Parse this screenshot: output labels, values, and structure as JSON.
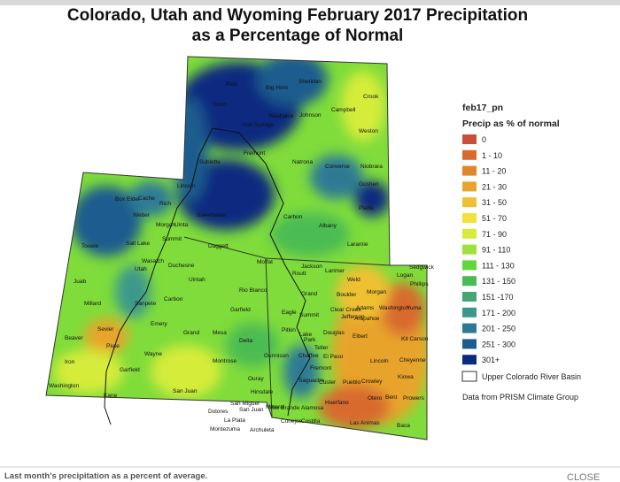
{
  "title": [
    "Colorado, Utah and Wyoming February 2017 Precipitation",
    "as a Percentage of Normal"
  ],
  "legend": {
    "layer": "feb17_pn",
    "heading": "Precip as % of normal",
    "items": [
      {
        "label": "0",
        "color": "#c8503a"
      },
      {
        "label": "1 - 10",
        "color": "#d86a2e"
      },
      {
        "label": "11 - 20",
        "color": "#e0862b"
      },
      {
        "label": "21 - 30",
        "color": "#e8a42c"
      },
      {
        "label": "31 - 50",
        "color": "#efc132"
      },
      {
        "label": "51 - 70",
        "color": "#f4e03a"
      },
      {
        "label": "71 - 90",
        "color": "#d6ec3b"
      },
      {
        "label": "91 - 110",
        "color": "#9ce23a"
      },
      {
        "label": "111 - 130",
        "color": "#62d63a"
      },
      {
        "label": "131 - 150",
        "color": "#4cbc52"
      },
      {
        "label": "151 -170",
        "color": "#44a676"
      },
      {
        "label": "171 - 200",
        "color": "#3d988c"
      },
      {
        "label": "201 - 250",
        "color": "#2d7a95"
      },
      {
        "label": "251 - 300",
        "color": "#1e5c8e"
      },
      {
        "label": "301+",
        "color": "#0c2a80"
      }
    ],
    "basin": "Upper Colorado River Basin"
  },
  "credit": "Data from PRISM Climate Group",
  "counties": [
    "Park",
    "Big Horn",
    "Sheridan",
    "Crook",
    "Teton",
    "Washakie",
    "Johnson",
    "Campbell",
    "Hot Springs",
    "Weston",
    "Fremont",
    "Natrona",
    "Converse",
    "Niobrara",
    "Sublette",
    "Lincoln",
    "Sweetwater",
    "Carbon",
    "Albany",
    "Platte",
    "Goshen",
    "Laramie",
    "Box Elder",
    "Cache",
    "Rich",
    "Weber",
    "Morgan",
    "Uinta",
    "Summit",
    "Daggett",
    "Salt Lake",
    "Tooele",
    "Wasatch",
    "Utah",
    "Duchesne",
    "Uintah",
    "Moffat",
    "Routt",
    "Jackson",
    "Larimer",
    "Logan",
    "Sedgwick",
    "Phillips",
    "Weld",
    "Morgan",
    "Rio Blanco",
    "Grand",
    "Juab",
    "Carbon",
    "Sanpete",
    "Millard",
    "Emery",
    "Garfield",
    "Eagle",
    "Summit",
    "Boulder",
    "Clear Creek",
    "Jefferson",
    "Arapahoe",
    "Adams",
    "Washington",
    "Yuma",
    "Sevier",
    "Grand",
    "Mesa",
    "Pitkin",
    "Lake",
    "Park",
    "Douglas",
    "Elbert",
    "Kit Carson",
    "Beaver",
    "Piute",
    "Wayne",
    "Delta",
    "Gunnison",
    "Chaffee",
    "Teller",
    "El Paso",
    "Lincoln",
    "Cheyenne",
    "Iron",
    "Garfield",
    "Montrose",
    "Ouray",
    "Fremont",
    "Custer",
    "Pueblo",
    "Crowley",
    "Kiowa",
    "Washington",
    "Kane",
    "San Juan",
    "San Miguel",
    "Dolores",
    "San Juan",
    "Hinsdale",
    "Mineral",
    "Saguache",
    "Otero",
    "Bent",
    "Prowers",
    "Montezuma",
    "La Plata",
    "Archuleta",
    "Rio Grande",
    "Alamosa",
    "Costilla",
    "Conejos",
    "Huerfano",
    "Las Animas",
    "Baca"
  ],
  "caption": "Last month's precipitation as a percent of average.",
  "close": "CLOSE"
}
